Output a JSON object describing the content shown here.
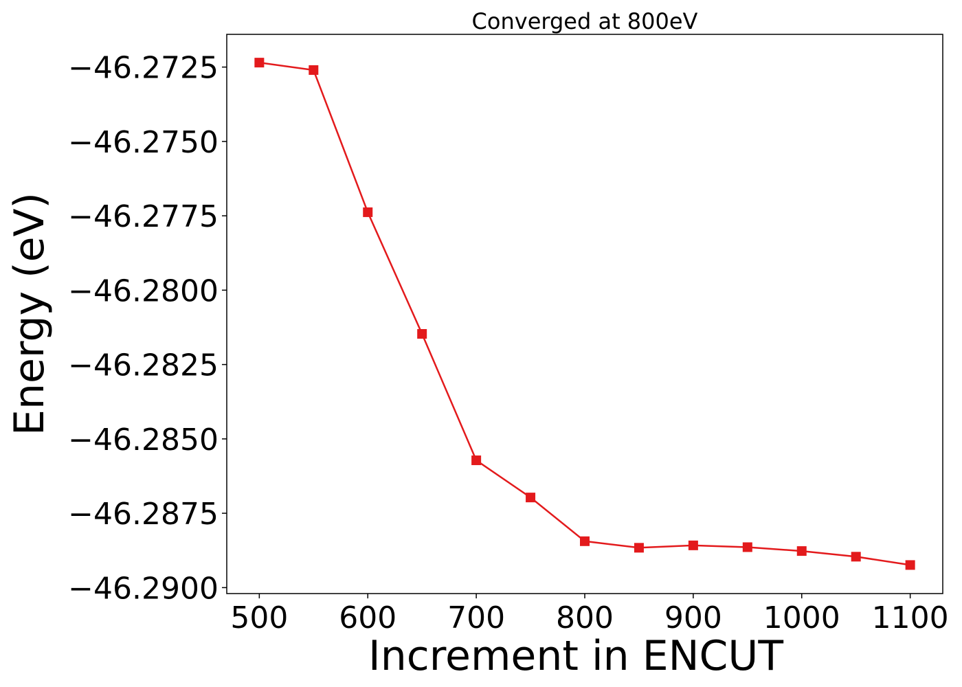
{
  "chart_data": {
    "type": "line",
    "title": "Converged at 800eV",
    "xlabel": "Increment in ENCUT",
    "ylabel": "Energy (eV)",
    "xlim": [
      470,
      1130
    ],
    "ylim": [
      -46.2902,
      -46.2714
    ],
    "x_ticks": [
      500,
      600,
      700,
      800,
      900,
      1000,
      1100
    ],
    "x_tick_labels": [
      "500",
      "600",
      "700",
      "800",
      "900",
      "1000",
      "1100"
    ],
    "y_ticks": [
      -46.2725,
      -46.275,
      -46.2775,
      -46.28,
      -46.2825,
      -46.285,
      -46.2875,
      -46.29
    ],
    "y_tick_labels": [
      "−46.2725",
      "−46.2750",
      "−46.2775",
      "−46.2800",
      "−46.2825",
      "−46.2850",
      "−46.2875",
      "−46.2900"
    ],
    "grid": false,
    "legend": "none",
    "series": [
      {
        "color": "#e31a1c",
        "marker": "square",
        "x": [
          500,
          550,
          600,
          650,
          700,
          750,
          800,
          850,
          900,
          950,
          1000,
          1050,
          1100
        ],
        "y": [
          -46.27235,
          -46.2726,
          -46.27738,
          -46.28147,
          -46.28572,
          -46.28697,
          -46.28844,
          -46.28866,
          -46.28858,
          -46.28864,
          -46.28877,
          -46.28896,
          -46.28924
        ]
      }
    ]
  }
}
